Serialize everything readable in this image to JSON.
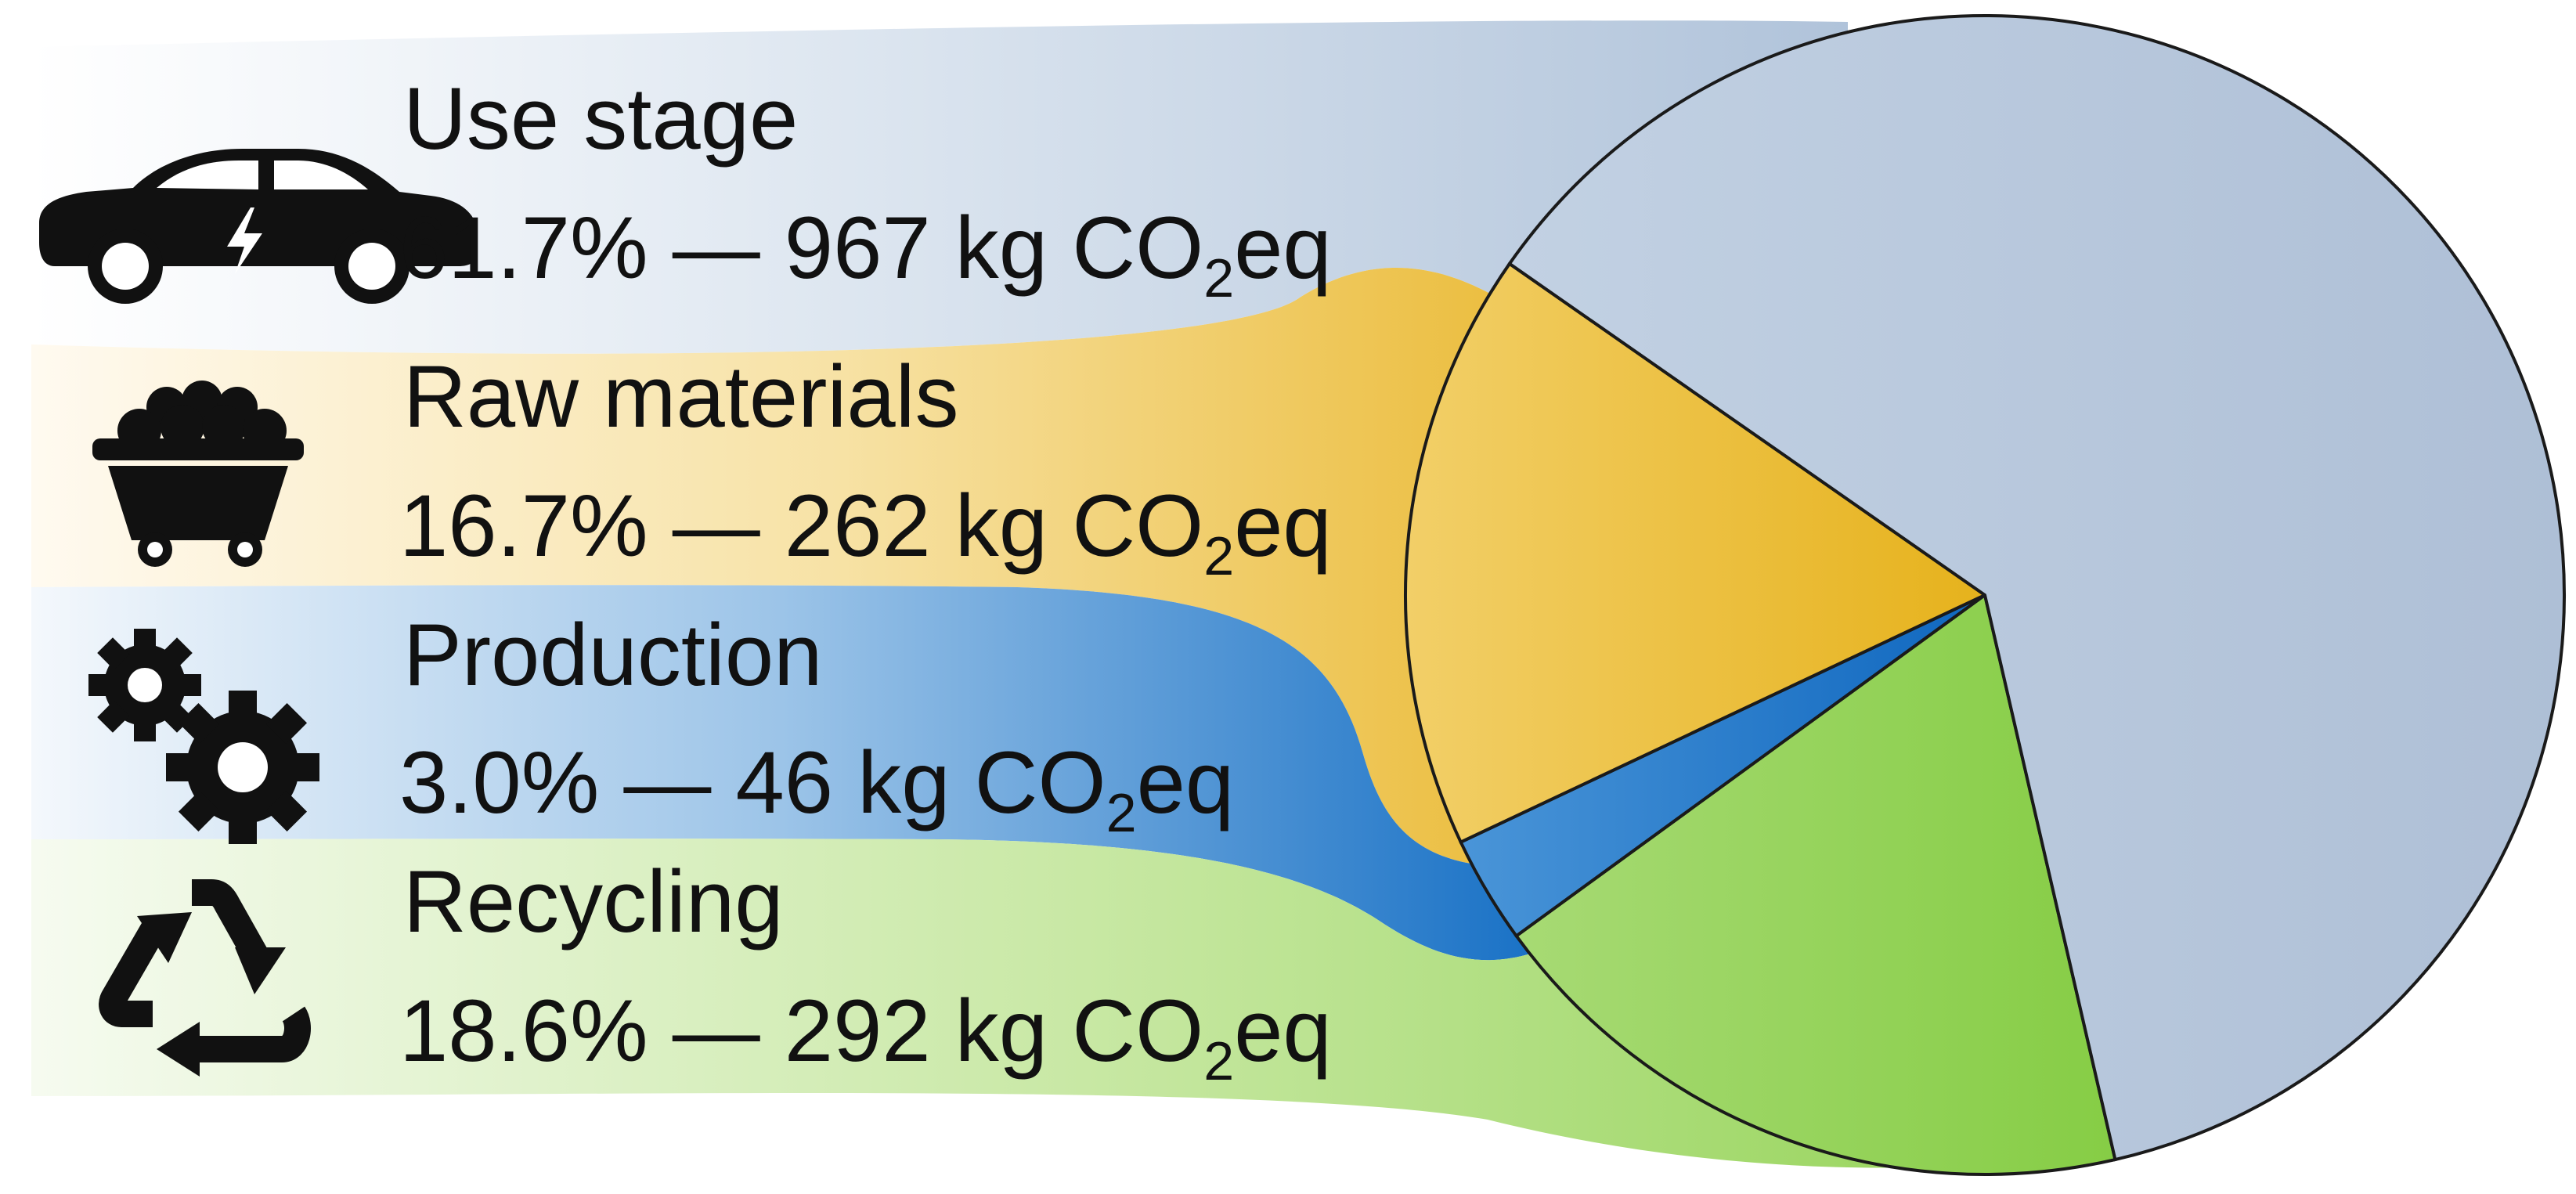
{
  "chart_data": {
    "type": "pie",
    "title": "",
    "unit": "kg CO2eq",
    "slices": [
      {
        "key": "use",
        "label": "Use stage",
        "percent": 61.7,
        "value": 967,
        "color": "#b0c3da",
        "band_color": "#d6e0ec",
        "icon": "electric-car-icon",
        "value_text": "61.7% — 967 kg CO",
        "sub": "2",
        "suffix": "eq"
      },
      {
        "key": "raw",
        "label": "Raw materials",
        "percent": 16.7,
        "value": 262,
        "color": "#e8b623",
        "band_color": "#f5d98a",
        "icon": "mine-cart-icon",
        "value_text": "16.7% — 262 kg CO",
        "sub": "2",
        "suffix": "eq"
      },
      {
        "key": "prod",
        "label": "Production",
        "percent": 3.0,
        "value": 46,
        "color": "#1a72c6",
        "band_color": "#6fa8dc",
        "icon": "gears-icon",
        "value_text": "3.0% — 46 kg CO",
        "sub": "2",
        "suffix": "eq"
      },
      {
        "key": "rec",
        "label": "Recycling",
        "percent": 18.6,
        "value": 292,
        "color": "#8fd14f",
        "band_color": "#c5e6a2",
        "icon": "recycle-icon",
        "value_text": "18.6% — 292 kg CO",
        "sub": "2",
        "suffix": "eq"
      }
    ],
    "legend": "left"
  }
}
